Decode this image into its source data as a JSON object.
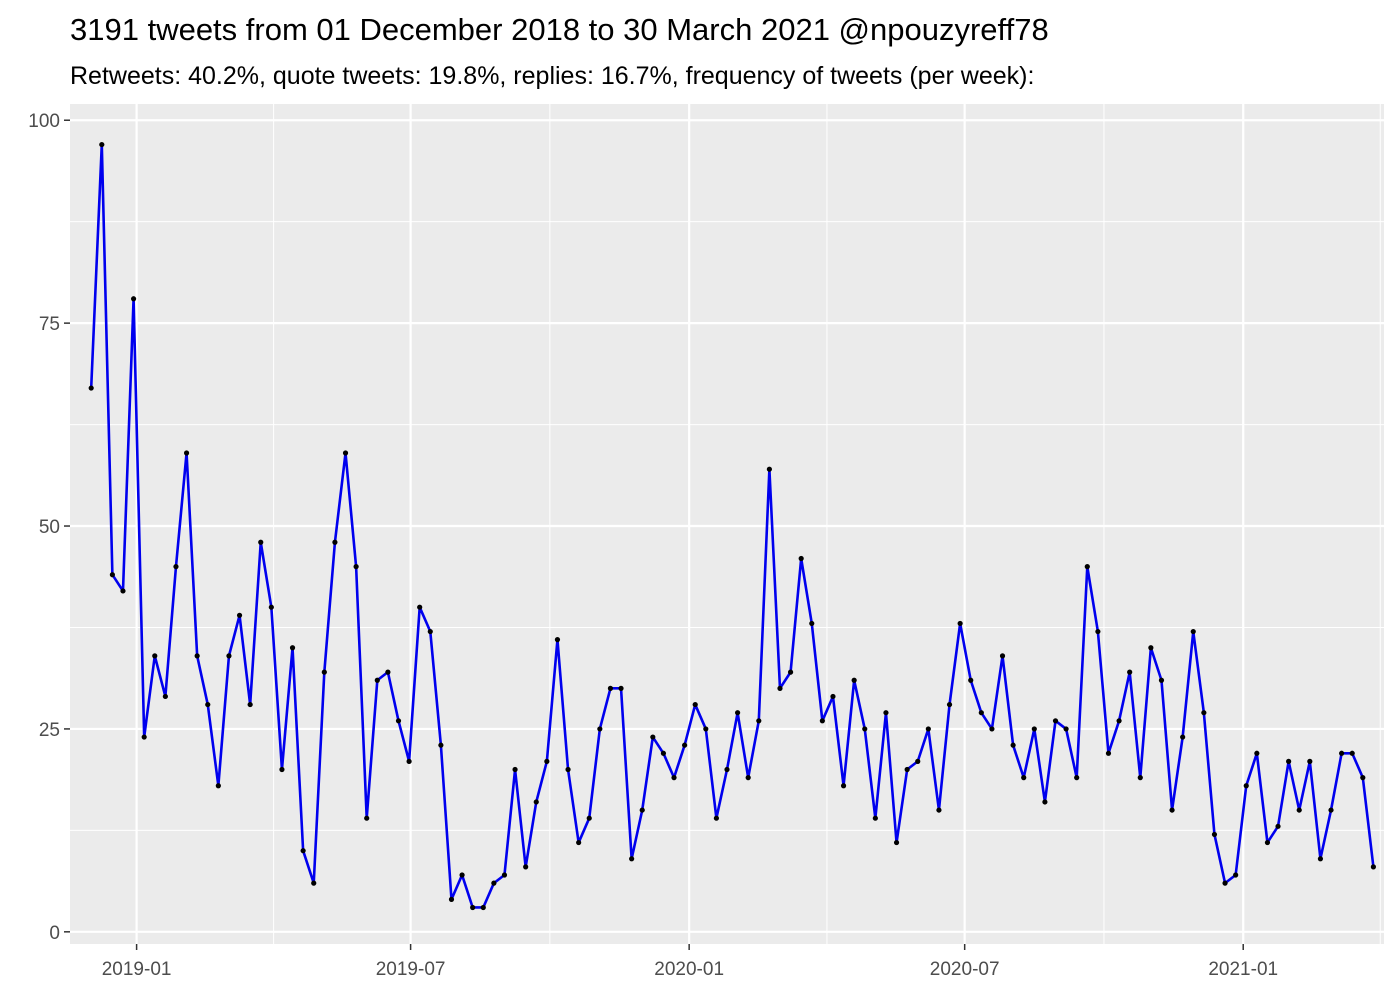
{
  "title": "3191 tweets from 01 December 2018 to 30 March 2021 @npouzyreff78",
  "subtitle": "Retweets: 40.2%, quote tweets: 19.8%, replies: 16.7%, frequency of tweets (per week):",
  "colors": {
    "panel": "#ebebeb",
    "grid_major": "#ffffff",
    "line": "#0000ee",
    "point": "#000000",
    "tick_text": "#4d4d4d"
  },
  "chart_data": {
    "type": "line",
    "title": "3191 tweets from 01 December 2018 to 30 March 2021 @npouzyreff78",
    "subtitle": "Retweets: 40.2%, quote tweets: 19.8%, replies: 16.7%, frequency of tweets (per week):",
    "xlabel": "",
    "ylabel": "",
    "x_type": "date",
    "xlim": [
      "2018-11-18",
      "2021-04-04"
    ],
    "ylim": [
      -1.5,
      102
    ],
    "x_ticks": [
      "2019-01",
      "2019-07",
      "2020-01",
      "2020-07",
      "2021-01"
    ],
    "y_ticks": [
      0,
      25,
      50,
      75,
      100
    ],
    "grid": true,
    "series": [
      {
        "x": [
          "2018-12-02",
          "2018-12-09",
          "2018-12-16",
          "2018-12-23",
          "2018-12-30",
          "2019-01-06",
          "2019-01-13",
          "2019-01-20",
          "2019-01-27",
          "2019-02-03",
          "2019-02-10",
          "2019-02-17",
          "2019-02-24",
          "2019-03-03",
          "2019-03-10",
          "2019-03-17",
          "2019-03-24",
          "2019-03-31",
          "2019-04-07",
          "2019-04-14",
          "2019-04-21",
          "2019-04-28",
          "2019-05-05",
          "2019-05-12",
          "2019-05-19",
          "2019-05-26",
          "2019-06-02",
          "2019-06-09",
          "2019-06-16",
          "2019-06-23",
          "2019-06-30",
          "2019-07-07",
          "2019-07-14",
          "2019-07-21",
          "2019-07-28",
          "2019-08-04",
          "2019-08-11",
          "2019-08-18",
          "2019-08-25",
          "2019-09-01",
          "2019-09-08",
          "2019-09-15",
          "2019-09-22",
          "2019-09-29",
          "2019-10-06",
          "2019-10-13",
          "2019-10-20",
          "2019-10-27",
          "2019-11-03",
          "2019-11-10",
          "2019-11-17",
          "2019-11-24",
          "2019-12-01",
          "2019-12-08",
          "2019-12-15",
          "2019-12-22",
          "2019-12-29",
          "2020-01-05",
          "2020-01-12",
          "2020-01-19",
          "2020-01-26",
          "2020-02-02",
          "2020-02-09",
          "2020-02-16",
          "2020-02-23",
          "2020-03-01",
          "2020-03-08",
          "2020-03-15",
          "2020-03-22",
          "2020-03-29",
          "2020-04-05",
          "2020-04-12",
          "2020-04-19",
          "2020-04-26",
          "2020-05-03",
          "2020-05-10",
          "2020-05-17",
          "2020-05-24",
          "2020-05-31",
          "2020-06-07",
          "2020-06-14",
          "2020-06-21",
          "2020-06-28",
          "2020-07-05",
          "2020-07-12",
          "2020-07-19",
          "2020-07-26",
          "2020-08-02",
          "2020-08-09",
          "2020-08-16",
          "2020-08-23",
          "2020-08-30",
          "2020-09-06",
          "2020-09-13",
          "2020-09-20",
          "2020-09-27",
          "2020-10-04",
          "2020-10-11",
          "2020-10-18",
          "2020-10-25",
          "2020-11-01",
          "2020-11-08",
          "2020-11-15",
          "2020-11-22",
          "2020-11-29",
          "2020-12-06",
          "2020-12-13",
          "2020-12-20",
          "2020-12-27",
          "2021-01-03",
          "2021-01-10",
          "2021-01-17",
          "2021-01-24",
          "2021-01-31",
          "2021-02-07",
          "2021-02-14",
          "2021-02-21",
          "2021-02-28",
          "2021-03-07",
          "2021-03-14",
          "2021-03-21",
          "2021-03-28"
        ],
        "values": [
          67,
          97,
          44,
          42,
          78,
          24,
          34,
          29,
          45,
          59,
          34,
          28,
          18,
          34,
          39,
          28,
          48,
          40,
          20,
          35,
          10,
          6,
          32,
          48,
          59,
          45,
          14,
          31,
          32,
          26,
          21,
          40,
          37,
          23,
          4,
          7,
          3,
          3,
          6,
          7,
          20,
          8,
          16,
          21,
          36,
          20,
          11,
          14,
          25,
          30,
          30,
          9,
          15,
          24,
          22,
          19,
          23,
          28,
          25,
          14,
          20,
          27,
          19,
          26,
          57,
          30,
          32,
          46,
          38,
          26,
          29,
          18,
          31,
          25,
          14,
          27,
          11,
          20,
          21,
          25,
          15,
          28,
          38,
          31,
          27,
          25,
          34,
          23,
          19,
          25,
          16,
          26,
          25,
          19,
          45,
          37,
          22,
          26,
          32,
          19,
          35,
          31,
          15,
          24,
          37,
          27,
          12,
          6,
          7,
          18,
          22,
          11,
          13,
          21,
          15,
          21,
          9,
          15,
          22,
          22,
          19,
          8
        ]
      }
    ]
  }
}
